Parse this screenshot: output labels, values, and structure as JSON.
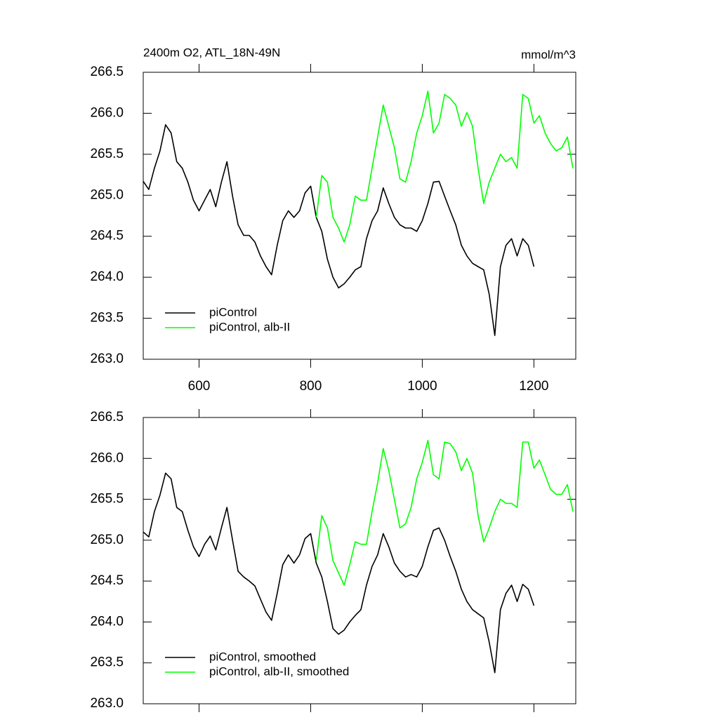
{
  "chart_data": [
    {
      "type": "line",
      "title": "2400m O2, ATL_18N-49N",
      "units": "mmol/m^3",
      "xlim": [
        500,
        1275
      ],
      "xticks": [
        600,
        800,
        1000,
        1200
      ],
      "ylim": [
        263,
        266.5
      ],
      "yticks": [
        {
          "value": 263,
          "label": "263.0"
        },
        263.5,
        {
          "value": 264,
          "label": "264.0"
        },
        264.5,
        {
          "value": 265,
          "label": "265.0"
        },
        265.5,
        {
          "value": 266,
          "label": "266.0"
        },
        266.5
      ],
      "legend": "lower left",
      "series": [
        {
          "name": "piControl",
          "color": "#000000",
          "x": [
            500,
            510,
            520,
            530,
            540,
            550,
            560,
            570,
            580,
            590,
            600,
            610,
            620,
            630,
            640,
            650,
            660,
            670,
            680,
            690,
            700,
            710,
            720,
            730,
            740,
            750,
            760,
            770,
            780,
            790,
            800,
            810,
            820,
            830,
            840,
            850,
            860,
            870,
            880,
            890,
            900,
            910,
            920,
            930,
            940,
            950,
            960,
            970,
            980,
            990,
            1000,
            1010,
            1020,
            1030,
            1040,
            1050,
            1060,
            1070,
            1080,
            1090,
            1100,
            1110,
            1120,
            1130,
            1140,
            1150,
            1160,
            1170,
            1180,
            1190,
            1200
          ],
          "values": [
            265.17,
            265.07,
            265.33,
            265.54,
            265.86,
            265.76,
            265.41,
            265.33,
            265.16,
            264.94,
            264.81,
            264.94,
            265.07,
            264.86,
            265.16,
            265.41,
            264.99,
            264.64,
            264.51,
            264.51,
            264.43,
            264.26,
            264.13,
            264.03,
            264.39,
            264.69,
            264.81,
            264.73,
            264.81,
            265.03,
            265.11,
            264.73,
            264.56,
            264.22,
            264.0,
            263.87,
            263.92,
            264.0,
            264.09,
            264.13,
            264.47,
            264.69,
            264.81,
            265.09,
            264.9,
            264.73,
            264.64,
            264.6,
            264.6,
            264.56,
            264.69,
            264.9,
            265.16,
            265.17,
            264.99,
            264.81,
            264.64,
            264.39,
            264.26,
            264.17,
            264.13,
            264.09,
            263.79,
            263.29,
            264.13,
            264.39,
            264.47,
            264.26,
            264.47,
            264.39,
            264.13
          ]
        },
        {
          "name": "piControl, alb-II",
          "color": "#00ff00",
          "x": [
            810,
            820,
            830,
            840,
            850,
            860,
            870,
            880,
            890,
            900,
            910,
            920,
            930,
            940,
            950,
            960,
            970,
            980,
            990,
            1000,
            1010,
            1020,
            1030,
            1040,
            1050,
            1060,
            1070,
            1080,
            1090,
            1100,
            1110,
            1120,
            1130,
            1140,
            1150,
            1160,
            1170,
            1180,
            1190,
            1200,
            1210,
            1220,
            1230,
            1240,
            1250,
            1260,
            1270
          ],
          "values": [
            264.73,
            265.24,
            265.16,
            264.73,
            264.6,
            264.43,
            264.64,
            264.99,
            264.94,
            264.94,
            265.33,
            265.71,
            266.1,
            265.84,
            265.58,
            265.2,
            265.16,
            265.41,
            265.76,
            265.97,
            266.27,
            265.76,
            265.88,
            266.23,
            266.18,
            266.1,
            265.84,
            266.01,
            265.84,
            265.33,
            264.9,
            265.16,
            265.33,
            265.5,
            265.41,
            265.46,
            265.33,
            266.23,
            266.18,
            265.88,
            265.97,
            265.76,
            265.63,
            265.54,
            265.58,
            265.71,
            265.33
          ]
        }
      ]
    },
    {
      "type": "line",
      "xlim": [
        500,
        1275
      ],
      "ylim": [
        263,
        266.5
      ],
      "yticks": [
        {
          "value": 263,
          "label": "263.0"
        },
        263.5,
        {
          "value": 264,
          "label": "264.0"
        },
        264.5,
        {
          "value": 265,
          "label": "265.0"
        },
        265.5,
        {
          "value": 266,
          "label": "266.0"
        },
        266.5
      ],
      "legend": "lower left",
      "series": [
        {
          "name": "piControl, smoothed",
          "color": "#000000",
          "x": [
            500,
            510,
            520,
            530,
            540,
            550,
            560,
            570,
            580,
            590,
            600,
            610,
            620,
            630,
            640,
            650,
            660,
            670,
            680,
            690,
            700,
            710,
            720,
            730,
            740,
            750,
            760,
            770,
            780,
            790,
            800,
            810,
            820,
            830,
            840,
            850,
            860,
            870,
            880,
            890,
            900,
            910,
            920,
            930,
            940,
            950,
            960,
            970,
            980,
            990,
            1000,
            1010,
            1020,
            1030,
            1040,
            1050,
            1060,
            1070,
            1080,
            1090,
            1100,
            1110,
            1120,
            1130,
            1140,
            1150,
            1160,
            1170,
            1180,
            1190,
            1200
          ],
          "values": [
            265.1,
            265.04,
            265.35,
            265.55,
            265.82,
            265.75,
            265.4,
            265.35,
            265.12,
            264.92,
            264.8,
            264.95,
            265.05,
            264.88,
            265.15,
            265.4,
            265.0,
            264.62,
            264.55,
            264.5,
            264.44,
            264.28,
            264.12,
            264.02,
            264.35,
            264.7,
            264.82,
            264.72,
            264.82,
            265.02,
            265.08,
            264.72,
            264.55,
            264.25,
            263.92,
            263.85,
            263.9,
            264.0,
            264.08,
            264.15,
            264.45,
            264.68,
            264.82,
            265.08,
            264.92,
            264.72,
            264.62,
            264.55,
            264.58,
            264.55,
            264.68,
            264.92,
            265.12,
            265.15,
            265.0,
            264.8,
            264.62,
            264.4,
            264.25,
            264.15,
            264.1,
            264.05,
            263.75,
            263.38,
            264.15,
            264.35,
            264.45,
            264.25,
            264.46,
            264.4,
            264.2
          ]
        },
        {
          "name": "piControl, alb-II, smoothed",
          "color": "#00ff00",
          "x": [
            810,
            820,
            830,
            840,
            850,
            860,
            870,
            880,
            890,
            900,
            910,
            920,
            930,
            940,
            950,
            960,
            970,
            980,
            990,
            1000,
            1010,
            1020,
            1030,
            1040,
            1050,
            1060,
            1070,
            1080,
            1090,
            1100,
            1110,
            1120,
            1130,
            1140,
            1150,
            1160,
            1170,
            1180,
            1190,
            1200,
            1210,
            1220,
            1230,
            1240,
            1250,
            1260,
            1270
          ],
          "values": [
            264.75,
            265.3,
            265.15,
            264.75,
            264.6,
            264.45,
            264.7,
            264.98,
            264.95,
            264.95,
            265.35,
            265.7,
            266.12,
            265.85,
            265.5,
            265.15,
            265.2,
            265.4,
            265.75,
            265.95,
            266.22,
            265.8,
            265.75,
            266.2,
            266.18,
            266.08,
            265.85,
            266.0,
            265.82,
            265.3,
            264.98,
            265.15,
            265.35,
            265.5,
            265.45,
            265.45,
            265.4,
            266.2,
            266.2,
            265.88,
            265.98,
            265.8,
            265.62,
            265.56,
            265.56,
            265.68,
            265.35
          ]
        }
      ]
    }
  ]
}
